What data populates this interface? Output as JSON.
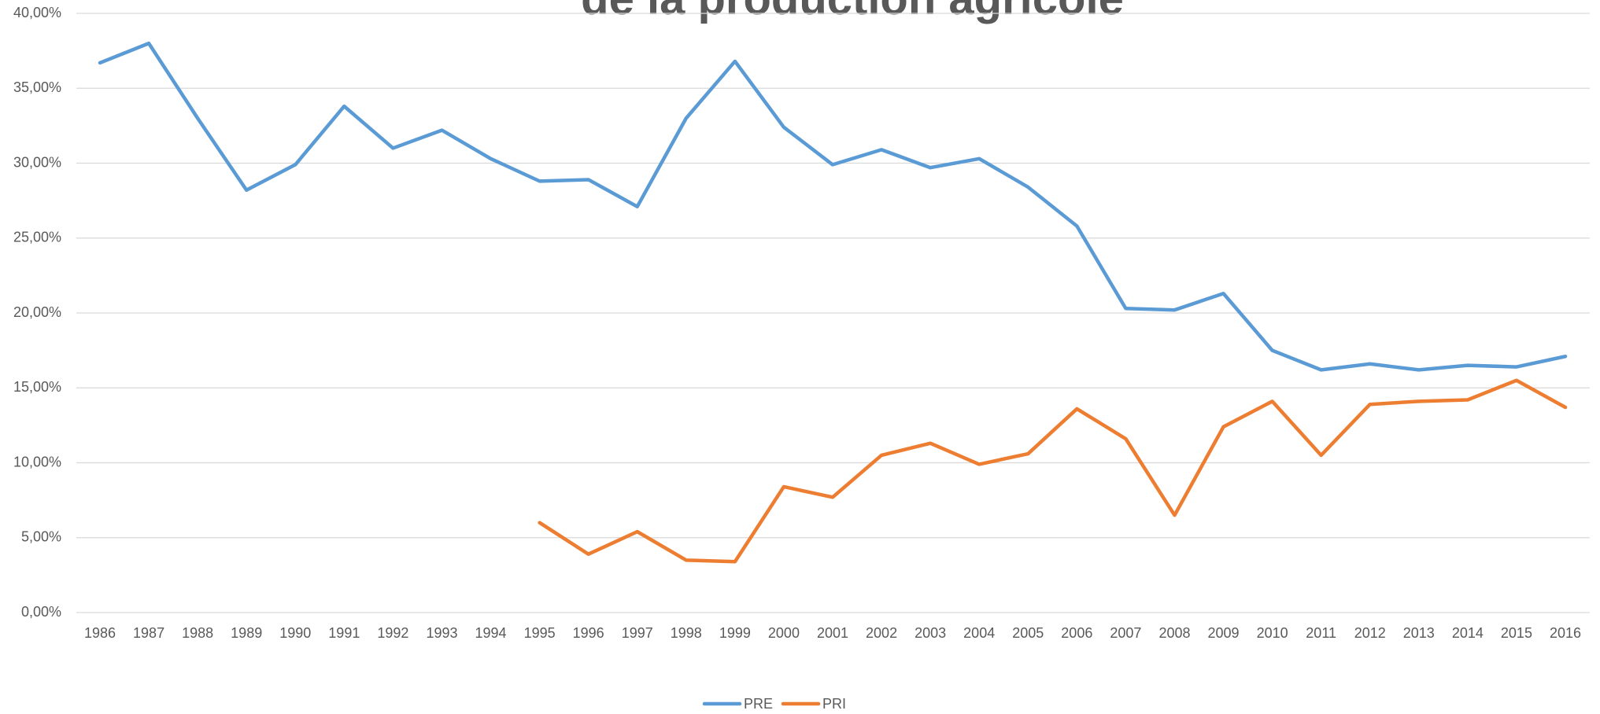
{
  "chart_data": {
    "type": "line",
    "title": "de la production agricole",
    "categories": [
      "1986",
      "1987",
      "1988",
      "1989",
      "1990",
      "1991",
      "1992",
      "1993",
      "1994",
      "1995",
      "1996",
      "1997",
      "1998",
      "1999",
      "2000",
      "2001",
      "2002",
      "2003",
      "2004",
      "2005",
      "2006",
      "2007",
      "2008",
      "2009",
      "2010",
      "2011",
      "2012",
      "2013",
      "2014",
      "2015",
      "2016"
    ],
    "series": [
      {
        "name": "PRE",
        "color": "#5b9bd5",
        "values": [
          36.7,
          38.0,
          33.0,
          28.2,
          29.9,
          33.8,
          31.0,
          32.2,
          30.3,
          28.8,
          28.9,
          27.1,
          33.0,
          36.8,
          32.4,
          29.9,
          30.9,
          29.7,
          30.3,
          28.4,
          25.8,
          20.3,
          20.2,
          21.3,
          17.5,
          16.2,
          16.6,
          16.2,
          16.5,
          16.4,
          17.1
        ]
      },
      {
        "name": "PRI",
        "color": "#ed7d31",
        "values": [
          null,
          null,
          null,
          null,
          null,
          null,
          null,
          null,
          null,
          6.0,
          3.9,
          5.4,
          3.5,
          3.4,
          8.4,
          7.7,
          10.5,
          11.3,
          9.9,
          10.6,
          13.6,
          11.6,
          6.5,
          12.4,
          14.1,
          10.5,
          13.9,
          14.1,
          14.2,
          15.5,
          13.7
        ]
      }
    ],
    "ylim": [
      0,
      40
    ],
    "yticks": [
      {
        "value": 0,
        "label": "0,00%"
      },
      {
        "value": 5,
        "label": "5,00%"
      },
      {
        "value": 10,
        "label": "10,00%"
      },
      {
        "value": 15,
        "label": "15,00%"
      },
      {
        "value": 20,
        "label": "20,00%"
      },
      {
        "value": 25,
        "label": "25,00%"
      },
      {
        "value": 30,
        "label": "30,00%"
      },
      {
        "value": 35,
        "label": "35,00%"
      },
      {
        "value": 40,
        "label": "40,00%"
      }
    ],
    "grid": true,
    "legend": "bottom"
  }
}
